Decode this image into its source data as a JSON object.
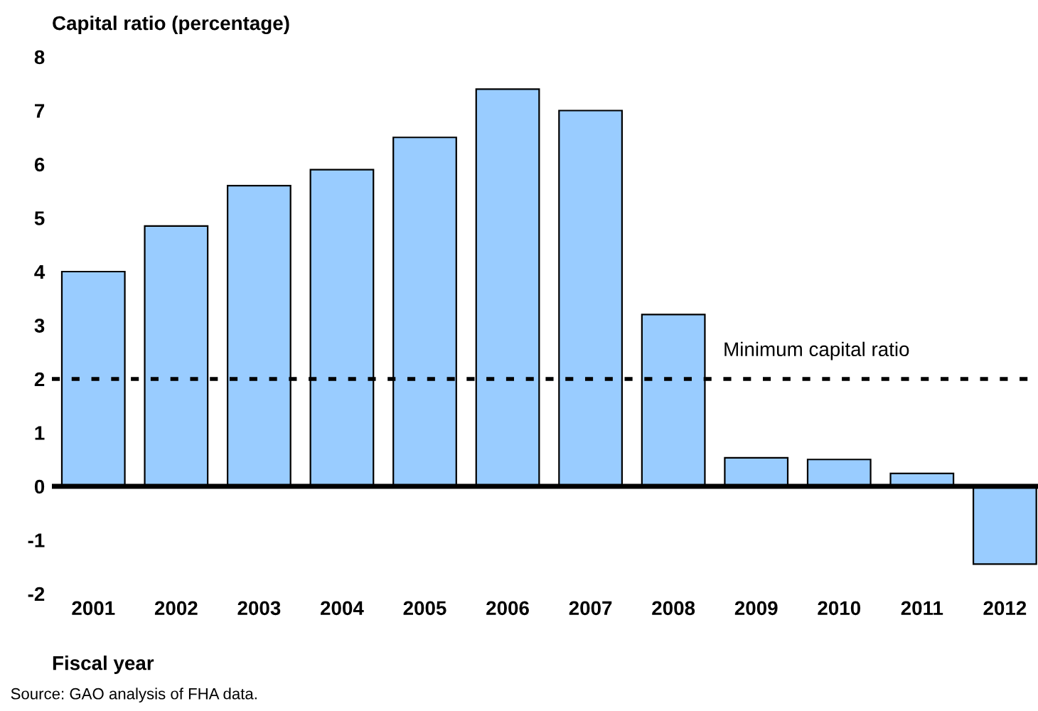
{
  "chart_data": {
    "type": "bar",
    "title": "Capital ratio (percentage)",
    "xlabel": "Fiscal year",
    "categories": [
      "2001",
      "2002",
      "2003",
      "2004",
      "2005",
      "2006",
      "2007",
      "2008",
      "2009",
      "2010",
      "2011",
      "2012"
    ],
    "values": [
      4.0,
      4.85,
      5.6,
      5.9,
      6.5,
      7.4,
      7.0,
      3.2,
      0.53,
      0.5,
      0.24,
      -1.45
    ],
    "color": "#99ccff",
    "ylim": [
      -2,
      8
    ],
    "yticks": [
      -2,
      -1,
      0,
      1,
      2,
      3,
      4,
      5,
      6,
      7,
      8
    ],
    "ref_lines": [
      {
        "axis": "y",
        "value": 2,
        "label": "Minimum capital ratio",
        "color": "#000000",
        "line_style": "dotted"
      }
    ],
    "annotations": [
      "Source: GAO analysis of FHA data."
    ],
    "grid": false
  }
}
